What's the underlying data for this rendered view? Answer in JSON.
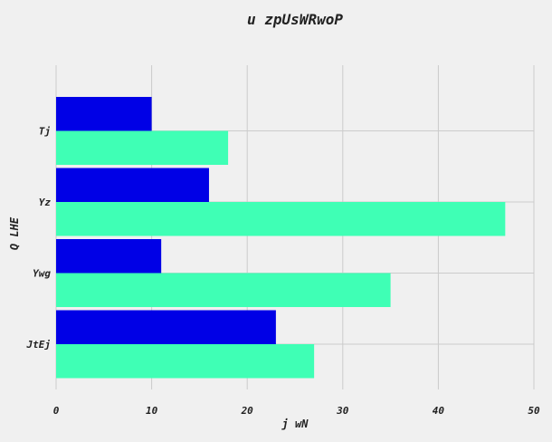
{
  "chart_data": {
    "type": "bar",
    "orientation": "horizontal",
    "title": "u zpUsWRwoP",
    "xlabel": "j wN",
    "ylabel": "Q LHE",
    "categories": [
      "Tj",
      "Yz",
      "Ywg",
      "JtEj"
    ],
    "series": [
      {
        "color": "#0000e6",
        "values": [
          10,
          16,
          11,
          23
        ]
      },
      {
        "color": "#3fffb5",
        "values": [
          18,
          47,
          35,
          27
        ]
      }
    ],
    "xlim": [
      0,
      50
    ],
    "xticks": [
      0,
      10,
      20,
      30,
      40,
      50
    ],
    "grid": true,
    "legend": "none"
  }
}
